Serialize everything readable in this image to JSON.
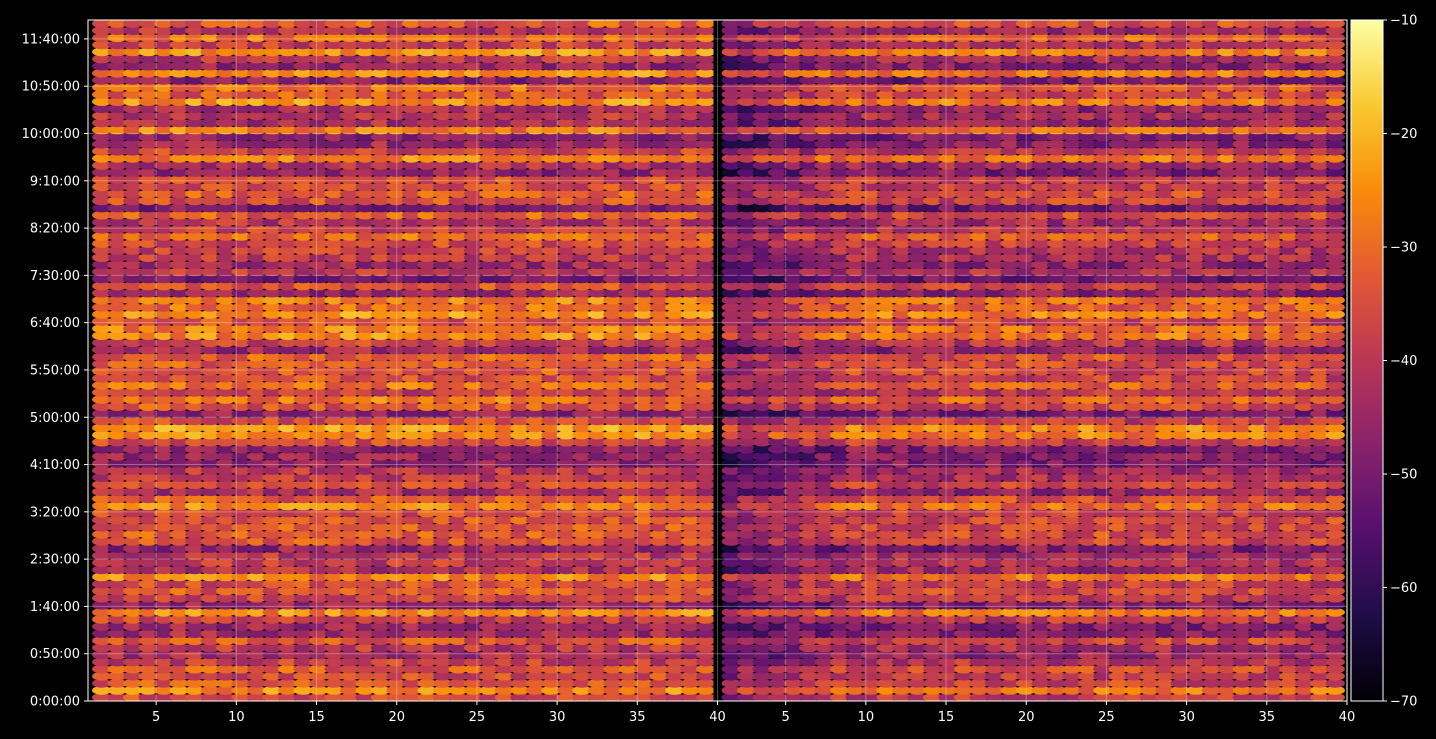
{
  "chart_data": {
    "type": "heatmap",
    "title": "",
    "xlabel": "",
    "ylabel": "",
    "colormap": "inferno",
    "background_color": "#000000",
    "foreground_color": "#ffffff",
    "grid": true,
    "x_scale": "linear",
    "panels": [
      {
        "name": "",
        "x_range": [
          1,
          40
        ],
        "x_ticks": [
          5,
          10,
          15,
          20,
          25,
          30,
          35,
          40
        ],
        "level_offset": 0
      },
      {
        "name": "",
        "x_range": [
          1,
          40
        ],
        "x_ticks": [
          5,
          10,
          15,
          20,
          25,
          30,
          35,
          40
        ],
        "level_offset": -10
      }
    ],
    "ylim": [
      "0:00:00",
      "12:00:00"
    ],
    "y_ticks": [
      "0:00:00",
      "0:50:00",
      "1:40:00",
      "2:30:00",
      "3:20:00",
      "4:10:00",
      "5:00:00",
      "5:50:00",
      "6:40:00",
      "7:30:00",
      "8:20:00",
      "9:10:00",
      "10:00:00",
      "10:50:00",
      "11:40:00"
    ],
    "colorbar": {
      "orientation": "vertical",
      "range": [
        -70,
        -10
      ],
      "ticks": [
        -70,
        -60,
        -50,
        -40,
        -30,
        -20,
        -10
      ]
    },
    "typical_value_range": [
      -60,
      -15
    ]
  }
}
